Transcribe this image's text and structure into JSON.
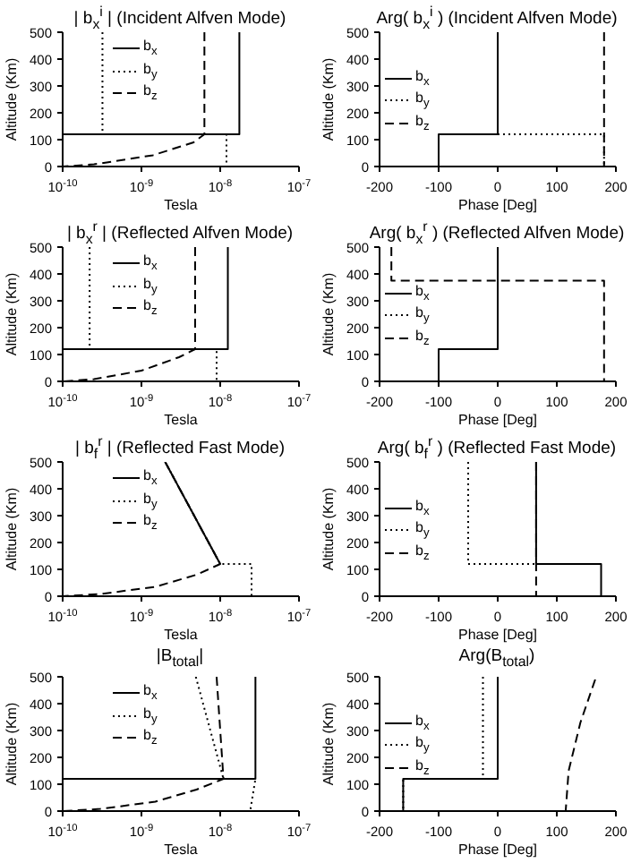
{
  "chart_data": [
    {
      "type": "line",
      "title": "| b$_{x}$$^{i}$ | (Incident Alfven Mode)",
      "xlabel": "Tesla",
      "ylabel": "Altitude (Km)",
      "log": "x",
      "legend": "top left",
      "xlim": [
        1e-10,
        1e-07
      ],
      "xticks": [
        {
          "value": 1e-10,
          "label": "10$^{-10}$"
        },
        {
          "value": 1e-09,
          "label": "10$^{-9}$"
        },
        {
          "value": 1e-08,
          "label": "10$^{-8}$"
        },
        {
          "value": 1e-07,
          "label": "10$^{-7}$"
        }
      ],
      "ylim": [
        0,
        500
      ],
      "yticks": [
        0,
        100,
        200,
        300,
        400,
        500
      ],
      "series": [
        {
          "name": "b$_{x}$",
          "color": "#000000",
          "line_style": "solid",
          "x": [
            1.75e-08,
            1.75e-08,
            1e-10
          ],
          "values": [
            500,
            120,
            120
          ]
        },
        {
          "name": "b$_{y}$",
          "color": "#000000",
          "line_style": "dotted",
          "x": [
            3.2e-10,
            3.2e-10,
            1.2e-08,
            1.2e-08
          ],
          "values": [
            500,
            120,
            120,
            0
          ]
        },
        {
          "name": "b$_{z}$",
          "color": "#000000",
          "line_style": "dashed",
          "x": [
            6.3e-09,
            6.3e-09,
            4.6e-09,
            1.4e-09,
            2.5e-10,
            1e-10
          ],
          "values": [
            500,
            120,
            90,
            42,
            8,
            0
          ]
        }
      ]
    },
    {
      "type": "line",
      "title": "Arg( b$_{x}$$^{i}$ ) (Incident Alfven Mode)",
      "xlabel": "Phase [Deg]",
      "ylabel": "Altitude (Km)",
      "legend": "left",
      "xlim": [
        -200,
        200
      ],
      "xticks": [
        -200,
        -100,
        0,
        100,
        200
      ],
      "ylim": [
        0,
        500
      ],
      "yticks": [
        0,
        100,
        200,
        300,
        400,
        500
      ],
      "series": [
        {
          "name": "b$_{x}$",
          "color": "#000000",
          "line_style": "solid",
          "x": [
            0,
            0,
            -100,
            -100
          ],
          "values": [
            500,
            120,
            120,
            0
          ]
        },
        {
          "name": "b$_{y}$",
          "color": "#000000",
          "line_style": "dotted",
          "x": [
            0,
            0,
            180,
            180
          ],
          "values": [
            500,
            120,
            120,
            0
          ]
        },
        {
          "name": "b$_{z}$",
          "color": "#000000",
          "line_style": "dashed",
          "x": [
            180,
            180
          ],
          "values": [
            500,
            0
          ]
        }
      ]
    },
    {
      "type": "line",
      "title": "| b$_{x}$$^{r}$ | (Reflected Alfven Mode)",
      "xlabel": "Tesla",
      "ylabel": "Altitude (Km)",
      "log": "x",
      "legend": "top left",
      "xlim": [
        1e-10,
        1e-07
      ],
      "xticks": [
        {
          "value": 1e-10,
          "label": "10$^{-10}$"
        },
        {
          "value": 1e-09,
          "label": "10$^{-9}$"
        },
        {
          "value": 1e-08,
          "label": "10$^{-8}$"
        },
        {
          "value": 1e-07,
          "label": "10$^{-7}$"
        }
      ],
      "ylim": [
        0,
        500
      ],
      "yticks": [
        0,
        100,
        200,
        300,
        400,
        500
      ],
      "series": [
        {
          "name": "b$_{x}$",
          "color": "#000000",
          "line_style": "solid",
          "x": [
            1.25e-08,
            1.25e-08,
            1e-10
          ],
          "values": [
            500,
            120,
            120
          ]
        },
        {
          "name": "b$_{y}$",
          "color": "#000000",
          "line_style": "dotted",
          "x": [
            2.2e-10,
            2.2e-10,
            9e-09,
            9e-09
          ],
          "values": [
            500,
            120,
            120,
            0
          ]
        },
        {
          "name": "b$_{z}$",
          "color": "#000000",
          "line_style": "dashed",
          "x": [
            4.8e-09,
            4.8e-09,
            3e-09,
            1e-09,
            2.5e-10,
            1e-10
          ],
          "values": [
            500,
            120,
            90,
            40,
            8,
            0
          ]
        }
      ]
    },
    {
      "type": "line",
      "title": "Arg( b$_{x}$$^{r}$ ) (Reflected Alfven Mode)",
      "xlabel": "Phase [Deg]",
      "ylabel": "Altitude (Km)",
      "legend": "left",
      "xlim": [
        -200,
        200
      ],
      "xticks": [
        -200,
        -100,
        0,
        100,
        200
      ],
      "ylim": [
        0,
        500
      ],
      "yticks": [
        0,
        100,
        200,
        300,
        400,
        500
      ],
      "series": [
        {
          "name": "b$_{x}$",
          "color": "#000000",
          "line_style": "solid",
          "x": [
            0,
            0,
            -100,
            -100
          ],
          "values": [
            500,
            120,
            120,
            0
          ]
        },
        {
          "name": "b$_{y}$",
          "color": "#000000",
          "line_style": "dotted"
        },
        {
          "name": "b$_{z}$",
          "color": "#000000",
          "line_style": "dashed",
          "x": [
            -180,
            -180,
            180,
            180
          ],
          "values": [
            500,
            375,
            375,
            0
          ]
        }
      ]
    },
    {
      "type": "line",
      "title": "| b$_{f}$$^{r}$ | (Reflected Fast Mode)",
      "xlabel": "Tesla",
      "ylabel": "Altitude (Km)",
      "log": "x",
      "legend": "top left",
      "xlim": [
        1e-10,
        1e-07
      ],
      "xticks": [
        {
          "value": 1e-10,
          "label": "10$^{-10}$"
        },
        {
          "value": 1e-09,
          "label": "10$^{-9}$"
        },
        {
          "value": 1e-08,
          "label": "10$^{-8}$"
        },
        {
          "value": 1e-07,
          "label": "10$^{-7}$"
        }
      ],
      "ylim": [
        0,
        500
      ],
      "yticks": [
        0,
        100,
        200,
        300,
        400,
        500
      ],
      "series": [
        {
          "name": "b$_{x}$",
          "color": "#000000",
          "line_style": "solid",
          "x": [
            2e-09,
            1e-08
          ],
          "values": [
            500,
            120
          ]
        },
        {
          "name": "b$_{y}$",
          "color": "#000000",
          "line_style": "dotted",
          "x": [
            2e-09,
            1e-08,
            2.5e-08,
            2.5e-08
          ],
          "values": [
            500,
            120,
            120,
            0
          ]
        },
        {
          "name": "b$_{z}$",
          "color": "#000000",
          "line_style": "dashed",
          "x": [
            2e-09,
            1e-08,
            5e-09,
            1.5e-09,
            3e-10,
            1e-10
          ],
          "values": [
            500,
            120,
            80,
            35,
            8,
            0
          ]
        }
      ]
    },
    {
      "type": "line",
      "title": "Arg( b$_{f}$$^{r}$ ) (Reflected Fast Mode)",
      "xlabel": "Phase [Deg]",
      "ylabel": "Altitude (Km)",
      "legend": "left",
      "xlim": [
        -200,
        200
      ],
      "xticks": [
        -200,
        -100,
        0,
        100,
        200
      ],
      "ylim": [
        0,
        500
      ],
      "yticks": [
        0,
        100,
        200,
        300,
        400,
        500
      ],
      "series": [
        {
          "name": "b$_{x}$",
          "color": "#000000",
          "line_style": "solid",
          "x": [
            65,
            65,
            175,
            175
          ],
          "values": [
            500,
            120,
            120,
            0
          ]
        },
        {
          "name": "b$_{y}$",
          "color": "#000000",
          "line_style": "dotted",
          "x": [
            -50,
            -50,
            65
          ],
          "values": [
            500,
            120,
            120
          ]
        },
        {
          "name": "b$_{z}$",
          "color": "#000000",
          "line_style": "dashed",
          "x": [
            65,
            65
          ],
          "values": [
            500,
            0
          ]
        }
      ]
    },
    {
      "type": "line",
      "title": "|B$_{total}$|",
      "xlabel": "Tesla",
      "ylabel": "Altitude (Km)",
      "log": "x",
      "legend": "top left",
      "xlim": [
        1e-10,
        1e-07
      ],
      "xticks": [
        {
          "value": 1e-10,
          "label": "10$^{-10}$"
        },
        {
          "value": 1e-09,
          "label": "10$^{-9}$"
        },
        {
          "value": 1e-08,
          "label": "10$^{-8}$"
        },
        {
          "value": 1e-07,
          "label": "10$^{-7}$"
        }
      ],
      "ylim": [
        0,
        500
      ],
      "yticks": [
        0,
        100,
        200,
        300,
        400,
        500
      ],
      "series": [
        {
          "name": "b$_{x}$",
          "color": "#000000",
          "line_style": "solid",
          "x": [
            2.8e-08,
            2.8e-08,
            1e-10
          ],
          "values": [
            500,
            120,
            120
          ]
        },
        {
          "name": "b$_{y}$",
          "color": "#000000",
          "line_style": "dotted",
          "x": [
            4.9e-09,
            1.1e-08,
            2.8e-08,
            2.4e-08
          ],
          "values": [
            500,
            120,
            120,
            0
          ]
        },
        {
          "name": "b$_{z}$",
          "color": "#000000",
          "line_style": "dashed",
          "x": [
            9e-09,
            1.1e-08,
            5e-09,
            1.5e-09,
            3e-10,
            1e-10
          ],
          "values": [
            500,
            120,
            80,
            35,
            8,
            0
          ]
        }
      ]
    },
    {
      "type": "line",
      "title": "Arg(B$_{total}$)",
      "xlabel": "Phase [Deg]",
      "ylabel": "Altitude (Km)",
      "legend": "left",
      "xlim": [
        -200,
        200
      ],
      "xticks": [
        -200,
        -100,
        0,
        100,
        200
      ],
      "ylim": [
        0,
        500
      ],
      "yticks": [
        0,
        100,
        200,
        300,
        400,
        500
      ],
      "series": [
        {
          "name": "b$_{x}$",
          "color": "#000000",
          "line_style": "solid",
          "x": [
            0,
            0,
            -160,
            -160
          ],
          "values": [
            500,
            120,
            120,
            0
          ]
        },
        {
          "name": "b$_{y}$",
          "color": "#000000",
          "line_style": "dotted",
          "x": [
            -25,
            -25,
            -160,
            -160
          ],
          "values": [
            500,
            120,
            120,
            0
          ]
        },
        {
          "name": "b$_{z}$",
          "color": "#000000",
          "line_style": "dashed",
          "x": [
            165,
            140,
            120,
            115
          ],
          "values": [
            490,
            330,
            150,
            0
          ]
        }
      ]
    }
  ]
}
